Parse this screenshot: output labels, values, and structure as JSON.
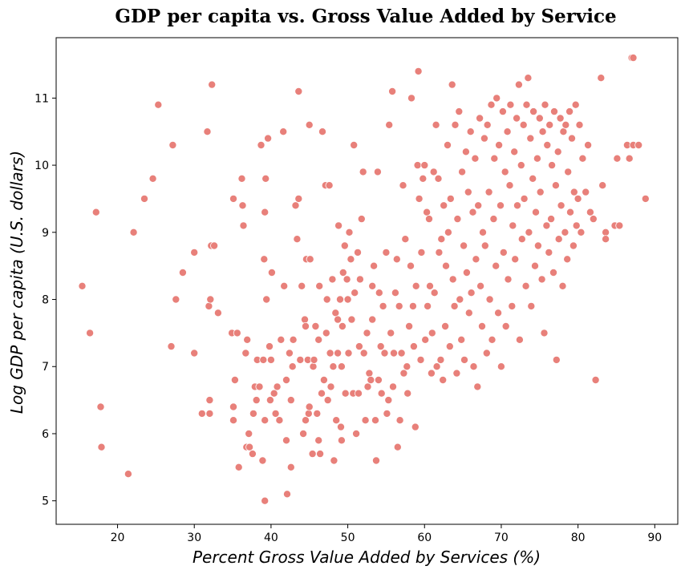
{
  "chart_data": {
    "type": "scatter",
    "title": "GDP per capita vs. Gross Value Added by Service",
    "xlabel": "Percent Gross Value Added by Services (%)",
    "ylabel": "Log GDP per capita (U.S. dollars)",
    "xlim": [
      12,
      93
    ],
    "ylim": [
      4.65,
      11.9
    ],
    "xticks": [
      "20",
      "30",
      "40",
      "50",
      "60",
      "70",
      "80",
      "90"
    ],
    "yticks": [
      "5",
      "6",
      "7",
      "8",
      "9",
      "10",
      "11"
    ],
    "grid": false,
    "point_color": "#e8807a",
    "points": [
      [
        15.4,
        8.2
      ],
      [
        16.4,
        7.5
      ],
      [
        17.2,
        9.3
      ],
      [
        17.8,
        6.4
      ],
      [
        17.9,
        5.8
      ],
      [
        21.4,
        5.4
      ],
      [
        22.1,
        9.0
      ],
      [
        23.5,
        9.5
      ],
      [
        24.6,
        9.8
      ],
      [
        25.3,
        10.9
      ],
      [
        27.0,
        7.3
      ],
      [
        27.2,
        10.3
      ],
      [
        27.6,
        8.0
      ],
      [
        28.5,
        8.4
      ],
      [
        30.0,
        8.7
      ],
      [
        30.0,
        7.2
      ],
      [
        31.0,
        6.3
      ],
      [
        31.7,
        10.5
      ],
      [
        32.0,
        6.3
      ],
      [
        32.0,
        6.5
      ],
      [
        31.9,
        7.9
      ],
      [
        32.1,
        8.0
      ],
      [
        32.3,
        11.2
      ],
      [
        32.2,
        8.8
      ],
      [
        32.6,
        8.8
      ],
      [
        33.1,
        7.8
      ],
      [
        34.9,
        7.5
      ],
      [
        35.1,
        6.4
      ],
      [
        35.1,
        9.5
      ],
      [
        35.1,
        6.2
      ],
      [
        35.3,
        6.8
      ],
      [
        35.6,
        7.5
      ],
      [
        35.8,
        5.5
      ],
      [
        36.2,
        9.8
      ],
      [
        36.3,
        9.4
      ],
      [
        36.4,
        9.1
      ],
      [
        36.7,
        7.2
      ],
      [
        36.8,
        5.8
      ],
      [
        36.9,
        7.4
      ],
      [
        37.1,
        6.0
      ],
      [
        37.2,
        5.8
      ],
      [
        37.6,
        5.7
      ],
      [
        37.7,
        6.3
      ],
      [
        37.9,
        6.7
      ],
      [
        38.1,
        6.5
      ],
      [
        38.2,
        7.1
      ],
      [
        38.5,
        6.7
      ],
      [
        38.7,
        10.3
      ],
      [
        38.9,
        5.6
      ],
      [
        39.0,
        7.1
      ],
      [
        39.1,
        8.6
      ],
      [
        39.2,
        6.2
      ],
      [
        39.2,
        5.0
      ],
      [
        39.2,
        9.3
      ],
      [
        39.3,
        9.8
      ],
      [
        39.4,
        8.0
      ],
      [
        39.6,
        10.4
      ],
      [
        39.8,
        7.3
      ],
      [
        39.9,
        6.5
      ],
      [
        40.0,
        7.1
      ],
      [
        40.1,
        8.4
      ],
      [
        40.4,
        6.6
      ],
      [
        40.6,
        6.3
      ],
      [
        40.8,
        6.7
      ],
      [
        41.1,
        6.2
      ],
      [
        41.3,
        7.4
      ],
      [
        41.6,
        10.5
      ],
      [
        41.7,
        8.2
      ],
      [
        42.0,
        6.8
      ],
      [
        42.0,
        5.9
      ],
      [
        42.1,
        5.1
      ],
      [
        42.4,
        7.2
      ],
      [
        42.6,
        6.5
      ],
      [
        42.6,
        5.5
      ],
      [
        42.8,
        7.0
      ],
      [
        42.9,
        7.4
      ],
      [
        43.2,
        9.4
      ],
      [
        43.4,
        8.9
      ],
      [
        43.6,
        9.5
      ],
      [
        43.6,
        11.1
      ],
      [
        43.8,
        7.1
      ],
      [
        44.0,
        8.2
      ],
      [
        44.2,
        6.0
      ],
      [
        44.4,
        7.7
      ],
      [
        44.5,
        6.2
      ],
      [
        44.5,
        7.6
      ],
      [
        44.6,
        8.6
      ],
      [
        44.8,
        7.1
      ],
      [
        44.9,
        6.3
      ],
      [
        45.0,
        10.6
      ],
      [
        45.0,
        6.4
      ],
      [
        45.1,
        8.6
      ],
      [
        45.4,
        5.7
      ],
      [
        45.5,
        7.0
      ],
      [
        45.6,
        7.1
      ],
      [
        45.8,
        7.6
      ],
      [
        46.0,
        6.3
      ],
      [
        46.2,
        7.4
      ],
      [
        46.2,
        5.9
      ],
      [
        46.3,
        8.2
      ],
      [
        46.4,
        5.7
      ],
      [
        46.6,
        6.6
      ],
      [
        46.7,
        10.5
      ],
      [
        46.9,
        6.8
      ],
      [
        47.1,
        9.7
      ],
      [
        47.2,
        7.5
      ],
      [
        47.3,
        8.0
      ],
      [
        47.4,
        6.5
      ],
      [
        47.6,
        9.7
      ],
      [
        47.7,
        7.2
      ],
      [
        47.8,
        6.7
      ],
      [
        48.0,
        8.3
      ],
      [
        48.1,
        7.0
      ],
      [
        48.2,
        5.6
      ],
      [
        48.4,
        7.8
      ],
      [
        48.5,
        6.2
      ],
      [
        48.7,
        7.2
      ],
      [
        48.7,
        7.7
      ],
      [
        48.8,
        9.1
      ],
      [
        49.0,
        8.0
      ],
      [
        49.1,
        6.1
      ],
      [
        49.2,
        7.0
      ],
      [
        49.2,
        5.9
      ],
      [
        49.3,
        7.6
      ],
      [
        49.4,
        8.4
      ],
      [
        49.6,
        8.8
      ],
      [
        49.7,
        6.6
      ],
      [
        49.9,
        8.3
      ],
      [
        50.0,
        8.0
      ],
      [
        50.1,
        7.2
      ],
      [
        50.2,
        9.0
      ],
      [
        50.4,
        8.6
      ],
      [
        50.5,
        7.7
      ],
      [
        50.7,
        6.6
      ],
      [
        50.8,
        10.3
      ],
      [
        50.9,
        8.1
      ],
      [
        51.1,
        6.0
      ],
      [
        51.3,
        8.7
      ],
      [
        51.4,
        6.6
      ],
      [
        51.5,
        7.3
      ],
      [
        51.6,
        8.3
      ],
      [
        51.8,
        9.2
      ],
      [
        52.0,
        9.9
      ],
      [
        52.1,
        7.2
      ],
      [
        52.3,
        6.2
      ],
      [
        52.5,
        7.5
      ],
      [
        52.6,
        6.7
      ],
      [
        52.8,
        6.9
      ],
      [
        53.0,
        6.8
      ],
      [
        53.2,
        8.2
      ],
      [
        53.2,
        7.7
      ],
      [
        53.4,
        8.5
      ],
      [
        53.6,
        6.2
      ],
      [
        53.7,
        5.6
      ],
      [
        53.9,
        9.9
      ],
      [
        54.0,
        6.8
      ],
      [
        54.1,
        8.1
      ],
      [
        54.3,
        7.3
      ],
      [
        54.4,
        6.6
      ],
      [
        54.6,
        7.9
      ],
      [
        54.8,
        7.2
      ],
      [
        55.0,
        8.7
      ],
      [
        55.1,
        6.3
      ],
      [
        55.3,
        6.5
      ],
      [
        55.4,
        10.6
      ],
      [
        55.6,
        7.5
      ],
      [
        55.8,
        11.1
      ],
      [
        55.9,
        6.7
      ],
      [
        56.0,
        7.2
      ],
      [
        56.2,
        8.1
      ],
      [
        56.4,
        8.6
      ],
      [
        56.5,
        5.8
      ],
      [
        56.7,
        7.9
      ],
      [
        56.8,
        6.2
      ],
      [
        57.0,
        7.2
      ],
      [
        57.2,
        9.7
      ],
      [
        57.3,
        6.9
      ],
      [
        57.5,
        8.9
      ],
      [
        57.7,
        7.0
      ],
      [
        57.8,
        6.6
      ],
      [
        58.0,
        7.6
      ],
      [
        58.2,
        8.5
      ],
      [
        58.3,
        11.0
      ],
      [
        58.5,
        7.9
      ],
      [
        58.6,
        7.3
      ],
      [
        58.8,
        6.1
      ],
      [
        58.9,
        8.2
      ],
      [
        59.1,
        10.0
      ],
      [
        59.2,
        11.4
      ],
      [
        59.3,
        9.5
      ],
      [
        59.5,
        7.1
      ],
      [
        59.6,
        8.7
      ],
      [
        59.8,
        9.8
      ],
      [
        60.0,
        10.0
      ],
      [
        60.1,
        7.4
      ],
      [
        60.3,
        9.3
      ],
      [
        60.4,
        7.9
      ],
      [
        60.6,
        9.2
      ],
      [
        60.7,
        8.2
      ],
      [
        60.9,
        6.9
      ],
      [
        61.0,
        7.5
      ],
      [
        61.2,
        9.9
      ],
      [
        61.3,
        8.1
      ],
      [
        61.5,
        10.6
      ],
      [
        61.6,
        7.0
      ],
      [
        61.8,
        9.8
      ],
      [
        61.9,
        8.7
      ],
      [
        62.1,
        7.1
      ],
      [
        62.2,
        8.9
      ],
      [
        62.4,
        6.8
      ],
      [
        62.5,
        9.4
      ],
      [
        62.7,
        7.6
      ],
      [
        62.8,
        8.5
      ],
      [
        63.0,
        10.3
      ],
      [
        63.1,
        9.0
      ],
      [
        63.3,
        7.3
      ],
      [
        63.4,
        9.5
      ],
      [
        63.6,
        11.2
      ],
      [
        63.7,
        8.3
      ],
      [
        63.9,
        7.9
      ],
      [
        64.0,
        10.6
      ],
      [
        64.2,
        6.9
      ],
      [
        64.3,
        9.2
      ],
      [
        64.5,
        10.8
      ],
      [
        64.6,
        8.0
      ],
      [
        64.8,
        7.4
      ],
      [
        64.9,
        9.9
      ],
      [
        65.1,
        8.8
      ],
      [
        65.2,
        7.1
      ],
      [
        65.4,
        10.2
      ],
      [
        65.5,
        8.4
      ],
      [
        65.7,
        9.6
      ],
      [
        65.8,
        7.8
      ],
      [
        66.0,
        10.5
      ],
      [
        66.1,
        8.1
      ],
      [
        66.3,
        9.3
      ],
      [
        66.4,
        7.0
      ],
      [
        66.6,
        10.1
      ],
      [
        66.7,
        8.6
      ],
      [
        66.9,
        6.7
      ],
      [
        67.0,
        9.4
      ],
      [
        67.2,
        10.7
      ],
      [
        67.3,
        8.2
      ],
      [
        67.5,
        7.6
      ],
      [
        67.6,
        9.0
      ],
      [
        67.8,
        10.4
      ],
      [
        67.9,
        8.8
      ],
      [
        68.1,
        7.2
      ],
      [
        68.2,
        10.6
      ],
      [
        68.4,
        9.6
      ],
      [
        68.5,
        8.0
      ],
      [
        68.7,
        10.9
      ],
      [
        68.8,
        7.4
      ],
      [
        69.0,
        9.2
      ],
      [
        69.1,
        10.1
      ],
      [
        69.3,
        8.5
      ],
      [
        69.4,
        11.0
      ],
      [
        69.6,
        7.8
      ],
      [
        69.7,
        10.3
      ],
      [
        69.9,
        9.4
      ],
      [
        70.0,
        7.0
      ],
      [
        70.2,
        10.8
      ],
      [
        70.3,
        8.7
      ],
      [
        70.5,
        9.9
      ],
      [
        70.6,
        7.6
      ],
      [
        70.8,
        10.5
      ],
      [
        70.9,
        8.3
      ],
      [
        71.1,
        9.7
      ],
      [
        71.2,
        10.9
      ],
      [
        71.4,
        7.9
      ],
      [
        71.5,
        9.1
      ],
      [
        71.7,
        10.2
      ],
      [
        71.8,
        8.6
      ],
      [
        72.0,
        10.7
      ],
      [
        72.1,
        9.4
      ],
      [
        72.3,
        11.2
      ],
      [
        72.4,
        7.4
      ],
      [
        72.6,
        10.0
      ],
      [
        72.7,
        8.9
      ],
      [
        72.9,
        10.6
      ],
      [
        73.0,
        9.5
      ],
      [
        73.2,
        8.2
      ],
      [
        73.3,
        10.9
      ],
      [
        73.5,
        11.3
      ],
      [
        73.6,
        9.0
      ],
      [
        73.8,
        10.4
      ],
      [
        73.9,
        7.9
      ],
      [
        74.1,
        9.8
      ],
      [
        74.2,
        10.8
      ],
      [
        74.4,
        8.5
      ],
      [
        74.5,
        9.3
      ],
      [
        74.7,
        10.1
      ],
      [
        74.8,
        8.8
      ],
      [
        75.0,
        10.7
      ],
      [
        75.1,
        9.6
      ],
      [
        75.3,
        8.3
      ],
      [
        75.4,
        10.5
      ],
      [
        75.6,
        7.5
      ],
      [
        75.7,
        10.9
      ],
      [
        75.9,
        9.1
      ],
      [
        76.0,
        10.3
      ],
      [
        76.2,
        8.7
      ],
      [
        76.3,
        10.6
      ],
      [
        76.5,
        9.2
      ],
      [
        76.6,
        10.0
      ],
      [
        76.8,
        8.4
      ],
      [
        76.9,
        10.8
      ],
      [
        77.1,
        9.7
      ],
      [
        77.2,
        7.1
      ],
      [
        77.4,
        10.2
      ],
      [
        77.5,
        8.9
      ],
      [
        77.7,
        10.7
      ],
      [
        77.8,
        9.4
      ],
      [
        78.0,
        8.2
      ],
      [
        78.1,
        10.5
      ],
      [
        78.3,
        9.0
      ],
      [
        78.4,
        10.6
      ],
      [
        78.6,
        8.6
      ],
      [
        78.7,
        9.9
      ],
      [
        78.9,
        10.8
      ],
      [
        79.0,
        9.3
      ],
      [
        79.2,
        10.4
      ],
      [
        79.4,
        8.8
      ],
      [
        79.5,
        9.6
      ],
      [
        79.7,
        10.9
      ],
      [
        79.8,
        9.1
      ],
      [
        80.0,
        9.5
      ],
      [
        80.2,
        10.6
      ],
      [
        80.4,
        9.0
      ],
      [
        80.6,
        10.1
      ],
      [
        81.0,
        9.6
      ],
      [
        81.3,
        10.3
      ],
      [
        81.6,
        9.3
      ],
      [
        82.0,
        9.2
      ],
      [
        82.3,
        6.8
      ],
      [
        83.0,
        11.3
      ],
      [
        83.2,
        9.7
      ],
      [
        83.6,
        9.0
      ],
      [
        83.6,
        8.9
      ],
      [
        84.8,
        9.1
      ],
      [
        85.1,
        10.1
      ],
      [
        85.4,
        9.1
      ],
      [
        86.4,
        10.3
      ],
      [
        86.7,
        10.1
      ],
      [
        87.0,
        11.6
      ],
      [
        87.2,
        11.6
      ],
      [
        87.2,
        10.3
      ],
      [
        87.9,
        10.3
      ],
      [
        88.8,
        9.5
      ]
    ]
  }
}
